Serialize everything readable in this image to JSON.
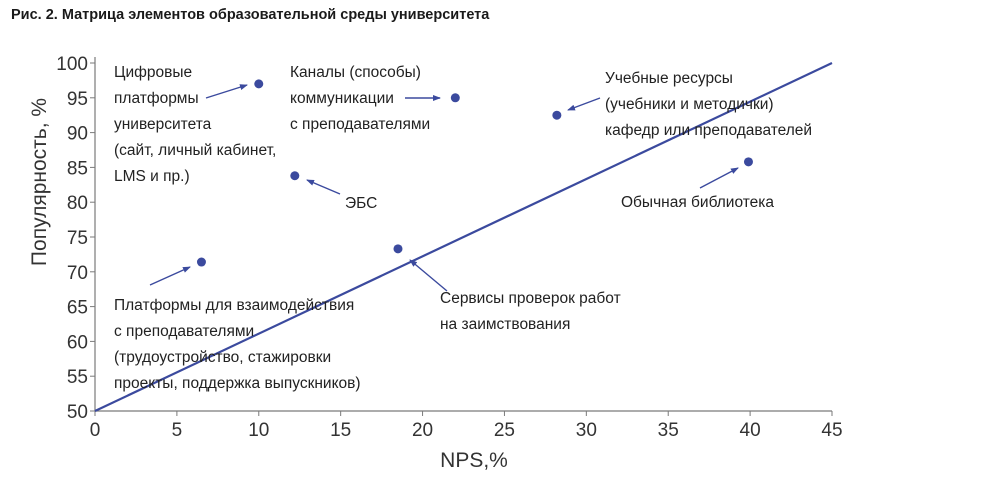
{
  "caption": "Рис. 2. Матрица элементов образовательной среды университета",
  "chart_data": {
    "type": "scatter",
    "title": "",
    "xlabel": "NPS,%",
    "ylabel": "Популярность, %",
    "xlim": [
      0,
      45
    ],
    "ylim": [
      50,
      100
    ],
    "x_ticks": [
      0,
      5,
      10,
      15,
      20,
      25,
      30,
      35,
      40,
      45
    ],
    "y_ticks": [
      50,
      55,
      60,
      65,
      70,
      75,
      80,
      85,
      90,
      95,
      100
    ],
    "grid": false,
    "legend": "none",
    "colors": {
      "point": "#3b4a9e",
      "trend": "#3b4a9e",
      "axis": "#7a7a7a",
      "text": "#222222"
    },
    "trendline": {
      "from": [
        0,
        50
      ],
      "to": [
        45,
        100
      ]
    },
    "points": [
      {
        "x": 10,
        "y": 97,
        "label": [
          "Цифровые",
          "платформы",
          "университета",
          "(сайт, личный кабинет,",
          "LMS и пр.)"
        ]
      },
      {
        "x": 22,
        "y": 95,
        "label": [
          "Каналы (способы)",
          "коммуникации",
          "с преподавателями"
        ]
      },
      {
        "x": 28.2,
        "y": 92.5,
        "label": [
          "Учебные ресурсы",
          "(учебники и методички)",
          "кафедр или преподавателей"
        ]
      },
      {
        "x": 12.2,
        "y": 83.8,
        "label": [
          "ЭБС"
        ]
      },
      {
        "x": 39.9,
        "y": 85.8,
        "label": [
          "Обычная библиотека"
        ]
      },
      {
        "x": 18.5,
        "y": 73.3,
        "label": [
          "Сервисы проверок работ",
          "на заимствования"
        ]
      },
      {
        "x": 6.5,
        "y": 71.4,
        "label": [
          "Платформы для взаимодействия",
          "с преподавателями",
          "(трудоустройство, стажировки",
          "проекты, поддержка выпускников)"
        ]
      }
    ]
  }
}
